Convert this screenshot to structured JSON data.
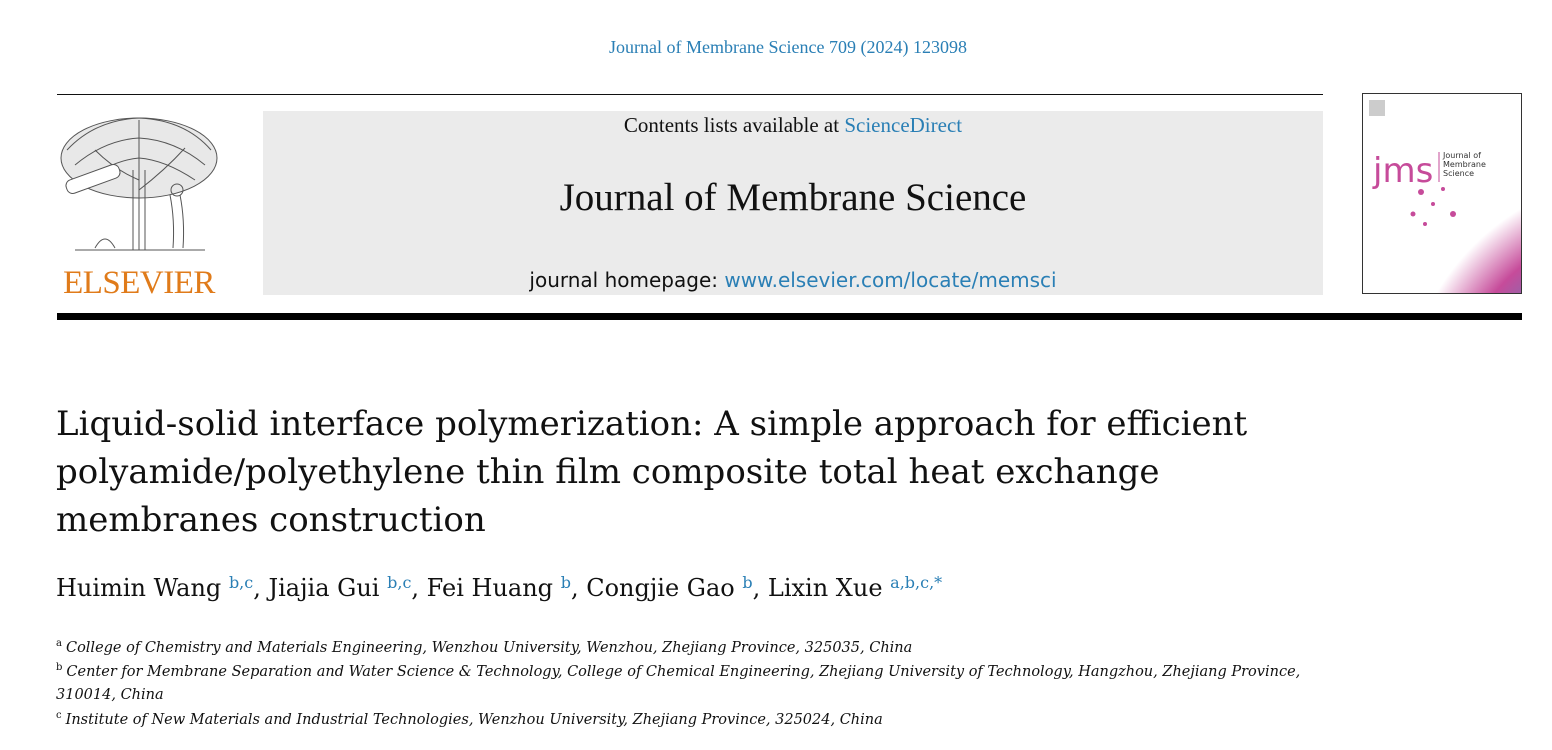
{
  "header": {
    "citation": "Journal of Membrane Science 709 (2024) 123098",
    "contents_prefix": "Contents lists available at ",
    "contents_link": "ScienceDirect",
    "journal_title": "Journal of Membrane Science",
    "homepage_prefix": "journal homepage: ",
    "homepage_link": "www.elsevier.com/locate/memsci",
    "publisher": "ELSEVIER",
    "cover_mark": "jms",
    "cover_title": [
      "Journal of",
      "Membrane",
      "Science"
    ]
  },
  "colors": {
    "link": "#2a7fb5",
    "publisher": "#e07b1a"
  },
  "article": {
    "title_lines": [
      "Liquid-solid interface polymerization: A simple approach for efficient",
      "polyamide/polyethylene thin film composite total heat exchange",
      "membranes construction"
    ],
    "authors": [
      {
        "name": "Huimin Wang",
        "sup": "b,c",
        "sep": ", "
      },
      {
        "name": "Jiajia Gui",
        "sup": "b,c",
        "sep": ", "
      },
      {
        "name": "Fei Huang",
        "sup": "b",
        "sep": ", "
      },
      {
        "name": "Congjie Gao",
        "sup": "b",
        "sep": ", "
      },
      {
        "name": "Lixin Xue",
        "sup": "a,b,c,*",
        "sep": ""
      }
    ],
    "affiliations": [
      {
        "mark": "a",
        "text": "College of Chemistry and Materials Engineering, Wenzhou University, Wenzhou, Zhejiang Province, 325035, China"
      },
      {
        "mark": "b",
        "text": "Center for Membrane Separation and Water Science & Technology, College of Chemical Engineering, Zhejiang University of Technology, Hangzhou, Zhejiang Province,",
        "cont": "310014, China"
      },
      {
        "mark": "c",
        "text": "Institute of New Materials and Industrial Technologies, Wenzhou University, Zhejiang Province, 325024, China"
      }
    ]
  }
}
